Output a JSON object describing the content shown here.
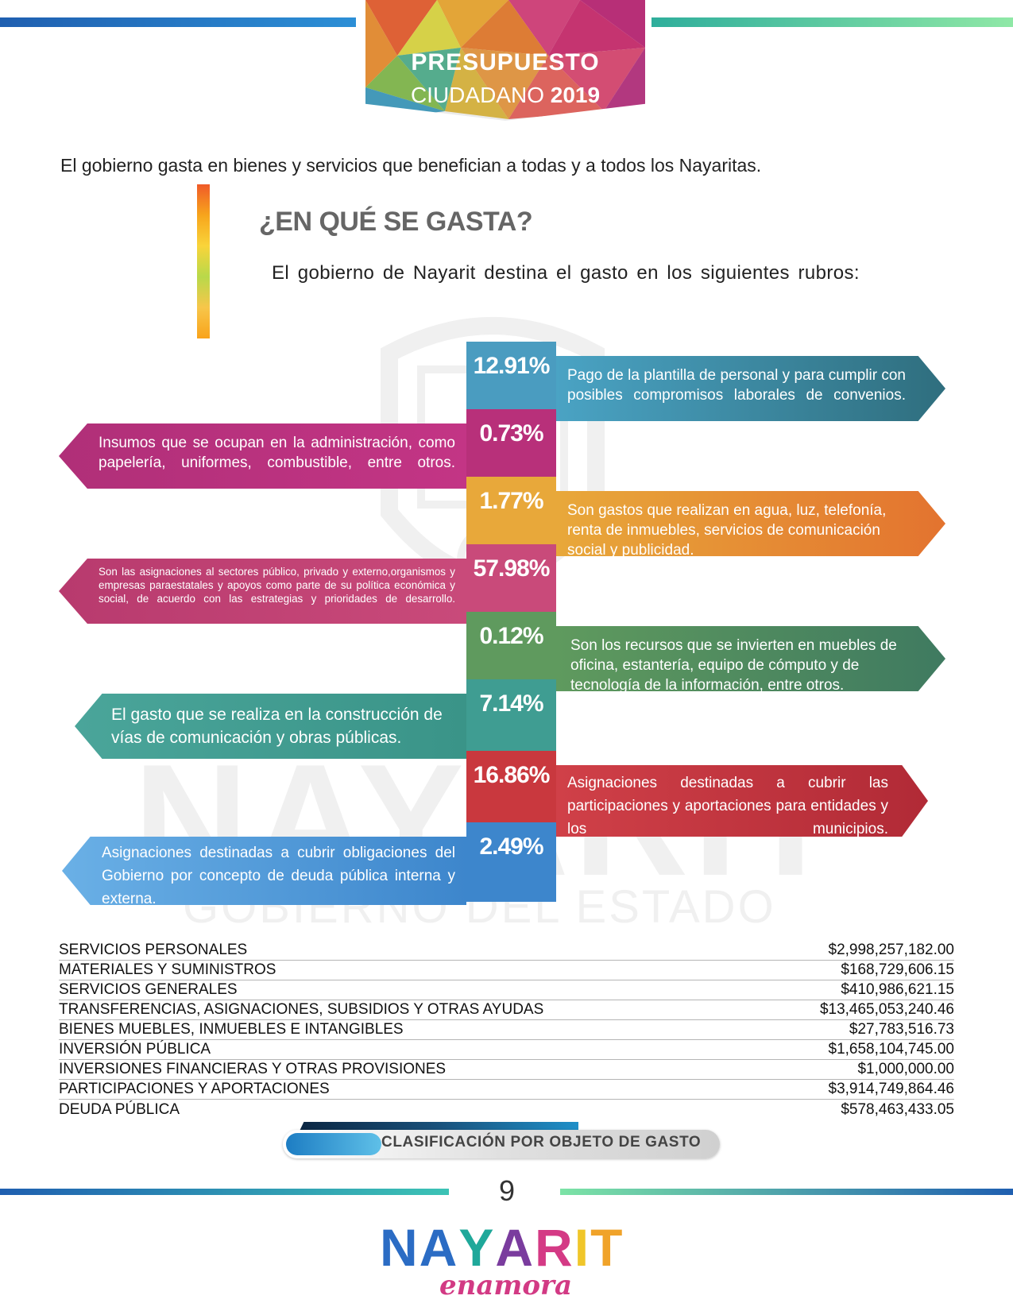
{
  "header": {
    "title_line1": "PRESUPUESTO",
    "title_line2_a": "CIUDADANO",
    "title_line2_b": "2019"
  },
  "intro": "El gobierno gasta en bienes y servicios que benefician a todas y a todos los Nayaritas.",
  "section": {
    "heading": "¿EN QUÉ SE GASTA?",
    "subtitle": "El gobierno de Nayarit destina el gasto en los siguientes rubros:"
  },
  "watermark": {
    "line1": "NAYARIT",
    "line2": "GOBIERNO DEL ESTADO"
  },
  "items": [
    {
      "pct": "12.91%",
      "side": "right",
      "color": "#3f8fb0",
      "text": "Pago de la plantilla de personal y para cumplir con posibles compromisos laborales de convenios."
    },
    {
      "pct": "0.73%",
      "side": "left",
      "color": "#b8307a",
      "text": "Insumos que se ocupan en la administración, como papelería, uniformes, combustible, entre otros."
    },
    {
      "pct": "1.77%",
      "side": "right",
      "color": "#e7a13a",
      "text": "Son gastos que realizan en agua, luz, telefonía, renta de inmuebles, servicios de comunicación social y publicidad."
    },
    {
      "pct": "57.98%",
      "side": "left",
      "color": "#c94a7a",
      "text": "Son las asignaciones al sectores público, privado y externo,organismos y empresas paraestatales y apoyos como parte de su política económica y social, de acuerdo con las estrategias y prioridades de desarrollo."
    },
    {
      "pct": "0.12%",
      "side": "right",
      "color": "#5d9a5d",
      "text": "Son los recursos que se invierten en muebles de oficina, estantería, equipo de cómputo y de tecnología de la información, entre otros."
    },
    {
      "pct": "7.14%",
      "side": "left",
      "color": "#3f9d92",
      "text": "El gasto que se realiza en la construcción de vías de comunicación y obras públicas."
    },
    {
      "pct": "16.86%",
      "side": "right",
      "color": "#c9383e",
      "text": "Asignaciones destinadas a cubrir las participaciones y aportaciones para entidades y los municipios."
    },
    {
      "pct": "2.49%",
      "side": "left",
      "color": "#3d86cc",
      "text": "Asignaciones destinadas a cubrir obligaciones del Gobierno por concepto de deuda pública interna y externa."
    }
  ],
  "table": [
    {
      "concept": "SERVICIOS PERSONALES",
      "amount": "$2,998,257,182.00"
    },
    {
      "concept": "MATERIALES Y SUMINISTROS",
      "amount": "$168,729,606.15"
    },
    {
      "concept": "SERVICIOS GENERALES",
      "amount": "$410,986,621.15"
    },
    {
      "concept": "TRANSFERENCIAS, ASIGNACIONES, SUBSIDIOS Y OTRAS AYUDAS",
      "amount": "$13,465,053,240.46"
    },
    {
      "concept": "BIENES MUEBLES, INMUEBLES E INTANGIBLES",
      "amount": "$27,783,516.73"
    },
    {
      "concept": "INVERSIÓN PÚBLICA",
      "amount": "$1,658,104,745.00"
    },
    {
      "concept": "INVERSIONES FINANCIERAS Y OTRAS PROVISIONES",
      "amount": "$1,000,000.00"
    },
    {
      "concept": "PARTICIPACIONES Y APORTACIONES",
      "amount": "$3,914,749,864.46"
    },
    {
      "concept": "DEUDA PÚBLICA",
      "amount": "$578,463,433.05"
    }
  ],
  "caption": "CLASIFICACIÓN POR OBJETO DE GASTO",
  "page_number": "9",
  "footer_logo": {
    "letters": [
      "N",
      "A",
      "Y",
      "A",
      "R",
      "I",
      "T"
    ],
    "colors": [
      "#2b6cc4",
      "#2b6cc4",
      "#1fa89a",
      "#7a3c9e",
      "#d43a85",
      "#f0c62a",
      "#f0a32a"
    ],
    "tagline": "enamora"
  }
}
